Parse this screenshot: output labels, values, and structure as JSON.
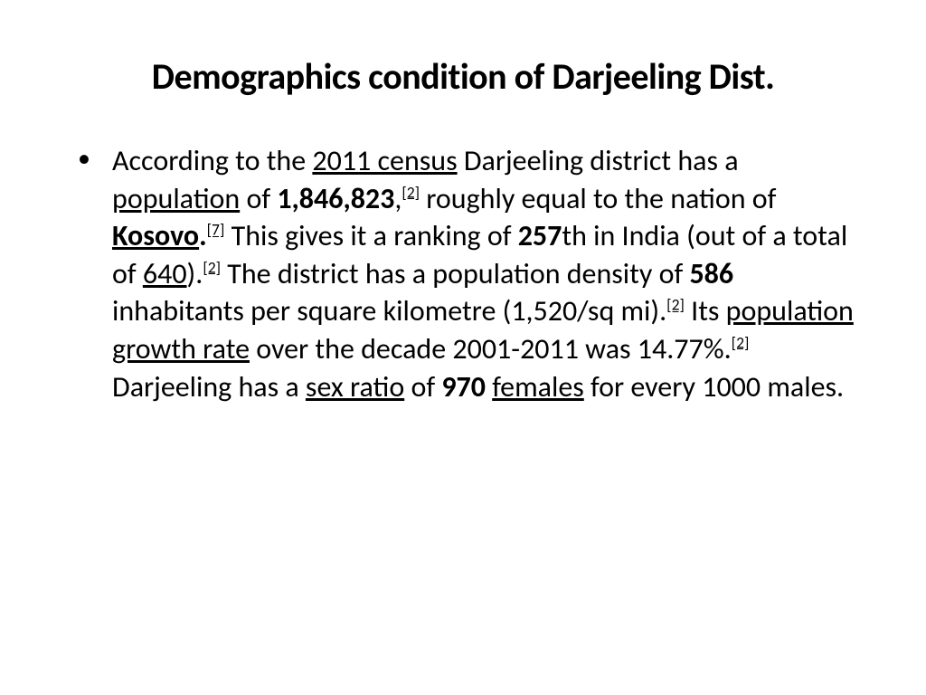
{
  "slide": {
    "title": "Demographics condition of Darjeeling Dist.",
    "bullet": {
      "segments": [
        {
          "t": "  According to the "
        },
        {
          "t": "2011 census",
          "u": true
        },
        {
          "t": " Darjeeling district has a "
        },
        {
          "t": "population",
          "u": true
        },
        {
          "t": " of "
        },
        {
          "t": "1,846,823",
          "b": true
        },
        {
          "t": ","
        },
        {
          "t": "[2]",
          "sup": true
        },
        {
          "t": " roughly equal to the nation of "
        },
        {
          "t": "Kosovo",
          "b": true,
          "u": true
        },
        {
          "t": ".",
          "b": true
        },
        {
          "t": "[7]",
          "sup": true
        },
        {
          "t": " This gives it a ranking of "
        },
        {
          "t": "257",
          "b": true
        },
        {
          "t": "th in India (out of a total of "
        },
        {
          "t": "640",
          "u": true
        },
        {
          "t": ")."
        },
        {
          "t": "[2]",
          "sup": true
        },
        {
          "t": " The district has a population density of "
        },
        {
          "t": "586",
          "b": true
        },
        {
          "t": " inhabitants per square kilometre (1,520/sq mi)."
        },
        {
          "t": "[2]",
          "sup": true
        },
        {
          "t": " Its "
        },
        {
          "t": "population growth rate",
          "u": true
        },
        {
          "t": " over the decade 2001-2011 was 14.77%."
        },
        {
          "t": "[2]",
          "sup": true
        },
        {
          "t": " Darjeeling has a "
        },
        {
          "t": "sex ratio",
          "u": true
        },
        {
          "t": " of "
        },
        {
          "t": "970",
          "b": true
        },
        {
          "t": " "
        },
        {
          "t": "females",
          "u": true
        },
        {
          "t": " for every 1000 males."
        }
      ]
    }
  },
  "style": {
    "background_color": "#ffffff",
    "text_color": "#000000",
    "title_fontsize": 40,
    "title_fontweight": 700,
    "body_fontsize": 32,
    "body_lineheight": 1.3,
    "font_family": "Calibri"
  }
}
